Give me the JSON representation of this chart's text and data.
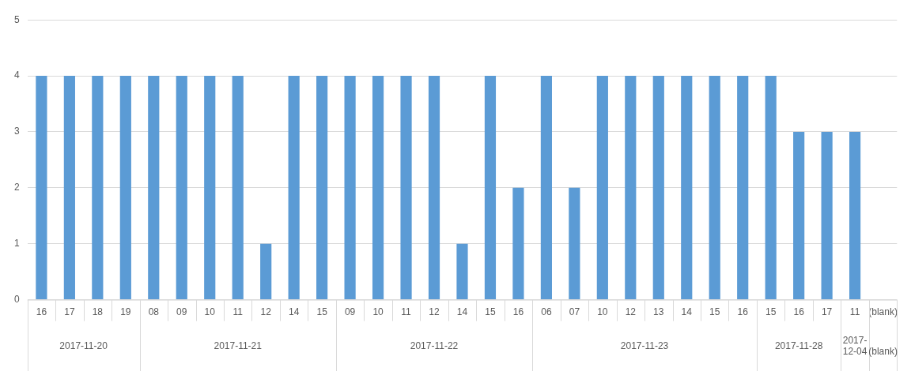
{
  "chart_data": {
    "type": "bar",
    "categories": [
      "16",
      "17",
      "18",
      "19",
      "08",
      "09",
      "10",
      "11",
      "12",
      "14",
      "15",
      "09",
      "10",
      "11",
      "12",
      "14",
      "15",
      "16",
      "06",
      "07",
      "10",
      "12",
      "13",
      "14",
      "15",
      "16",
      "15",
      "16",
      "17",
      "11",
      "(blank)"
    ],
    "values": [
      4,
      4,
      4,
      4,
      4,
      4,
      4,
      4,
      1,
      4,
      4,
      4,
      4,
      4,
      4,
      1,
      4,
      2,
      4,
      2,
      4,
      4,
      4,
      4,
      4,
      4,
      4,
      3,
      3,
      3,
      null
    ],
    "color": "#5b9bd5",
    "annotations": [
      "2017-11-20",
      "2017-11-21",
      "2017-11-22",
      "2017-11-23",
      "2017-11-28",
      "2017-12-04",
      "(blank)"
    ],
    "ylim": [
      0,
      5
    ],
    "yticks": [
      0,
      1,
      2,
      3,
      4,
      5
    ],
    "grid": "y",
    "legend": false
  }
}
